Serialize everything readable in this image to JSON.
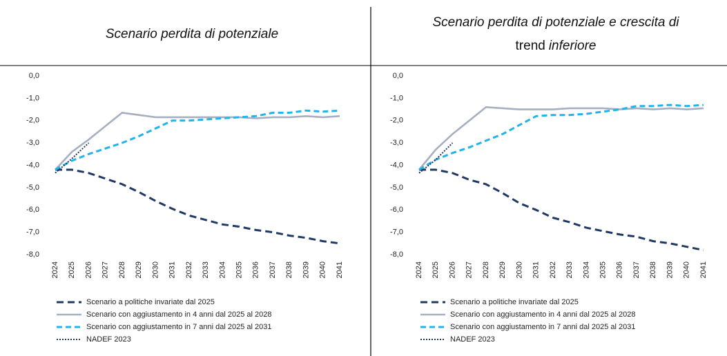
{
  "chart_data": [
    {
      "type": "line",
      "title": [
        "Scenario perdita di potenziale"
      ],
      "title_italic": [
        true
      ],
      "categories": [
        "2024",
        "2025",
        "2026",
        "2027",
        "2028",
        "2029",
        "2030",
        "2031",
        "2032",
        "2033",
        "2034",
        "2035",
        "2036",
        "2037",
        "2038",
        "2039",
        "2040",
        "2041"
      ],
      "ylim": [
        -8,
        0
      ],
      "yticks": [
        {
          "value": 0,
          "label": "0,0"
        },
        {
          "value": -1,
          "label": "-1,0"
        },
        {
          "value": -2,
          "label": "-2,0"
        },
        {
          "value": -3,
          "label": "-3,0"
        },
        {
          "value": -4,
          "label": "-4,0"
        },
        {
          "value": -5,
          "label": "-5,0"
        },
        {
          "value": -6,
          "label": "-6,0"
        },
        {
          "value": -7,
          "label": "-7,0"
        },
        {
          "value": -8,
          "label": "-8,0"
        }
      ],
      "grid": false,
      "series": [
        {
          "name": "Scenario a politiche invariate dal 2025",
          "color": "#1f3864",
          "style": "dashed",
          "values": [
            -4.2,
            -4.2,
            -4.35,
            -4.6,
            -4.85,
            -5.2,
            -5.6,
            -5.95,
            -6.25,
            -6.45,
            -6.65,
            -6.75,
            -6.9,
            -7.0,
            -7.15,
            -7.25,
            -7.4,
            -7.5
          ]
        },
        {
          "name": "Scenario con aggiustamento in 4 anni dal 2025 al 2028",
          "color": "#a6afc0",
          "style": "solid",
          "values": [
            -4.2,
            -3.4,
            -2.85,
            -2.25,
            -1.65,
            -1.75,
            -1.85,
            -1.85,
            -1.85,
            -1.85,
            -1.85,
            -1.85,
            -1.9,
            -1.85,
            -1.85,
            -1.8,
            -1.85,
            -1.8
          ]
        },
        {
          "name": "Scenario con aggiustamento in 7 anni dal 2025 al 2031",
          "color": "#1fb4ec",
          "style": "dashed-light",
          "values": [
            -4.2,
            -3.8,
            -3.5,
            -3.25,
            -3.0,
            -2.7,
            -2.35,
            -2.0,
            -2.0,
            -1.95,
            -1.9,
            -1.85,
            -1.8,
            -1.65,
            -1.65,
            -1.55,
            -1.6,
            -1.55
          ]
        },
        {
          "name": "NADEF 2023",
          "color": "#1f3864",
          "style": "dotted",
          "values": [
            -4.35,
            -3.7,
            -3.0,
            null,
            null,
            null,
            null,
            null,
            null,
            null,
            null,
            null,
            null,
            null,
            null,
            null,
            null,
            null
          ]
        }
      ]
    },
    {
      "type": "line",
      "title": [
        "Scenario perdita di potenziale e crescita di",
        "trend",
        "inferiore"
      ],
      "title_italic": [
        true,
        false,
        true
      ],
      "categories": [
        "2024",
        "2025",
        "2026",
        "2027",
        "2028",
        "2029",
        "2030",
        "2031",
        "2032",
        "2033",
        "2034",
        "2035",
        "2036",
        "2037",
        "2038",
        "2039",
        "2040",
        "2041"
      ],
      "ylim": [
        -8,
        0
      ],
      "yticks": [
        {
          "value": 0,
          "label": "0,0"
        },
        {
          "value": -1,
          "label": "-1,0"
        },
        {
          "value": -2,
          "label": "-2,0"
        },
        {
          "value": -3,
          "label": "-3,0"
        },
        {
          "value": -4,
          "label": "-4,0"
        },
        {
          "value": -5,
          "label": "-5,0"
        },
        {
          "value": -6,
          "label": "-6,0"
        },
        {
          "value": -7,
          "label": "-7,0"
        },
        {
          "value": -8,
          "label": "-8,0"
        }
      ],
      "grid": false,
      "series": [
        {
          "name": "Scenario a politiche invariate dal 2025",
          "color": "#1f3864",
          "style": "dashed",
          "values": [
            -4.2,
            -4.2,
            -4.35,
            -4.65,
            -4.85,
            -5.25,
            -5.7,
            -6.0,
            -6.35,
            -6.55,
            -6.8,
            -6.95,
            -7.1,
            -7.2,
            -7.4,
            -7.5,
            -7.65,
            -7.8
          ]
        },
        {
          "name": "Scenario con aggiustamento in 4 anni dal 2025 al 2028",
          "color": "#a6afc0",
          "style": "solid",
          "values": [
            -4.2,
            -3.3,
            -2.6,
            -2.0,
            -1.4,
            -1.45,
            -1.5,
            -1.5,
            -1.5,
            -1.45,
            -1.45,
            -1.45,
            -1.5,
            -1.45,
            -1.5,
            -1.45,
            -1.5,
            -1.45
          ]
        },
        {
          "name": "Scenario con aggiustamento in 7 anni dal 2025 al 2031",
          "color": "#1fb4ec",
          "style": "dashed-light",
          "values": [
            -4.2,
            -3.75,
            -3.45,
            -3.2,
            -2.9,
            -2.6,
            -2.2,
            -1.8,
            -1.75,
            -1.75,
            -1.7,
            -1.6,
            -1.5,
            -1.35,
            -1.35,
            -1.3,
            -1.35,
            -1.3
          ]
        },
        {
          "name": "NADEF 2023",
          "color": "#1f3864",
          "style": "dotted",
          "values": [
            -4.35,
            -3.75,
            -3.0,
            null,
            null,
            null,
            null,
            null,
            null,
            null,
            null,
            null,
            null,
            null,
            null,
            null,
            null,
            null
          ]
        }
      ]
    }
  ]
}
